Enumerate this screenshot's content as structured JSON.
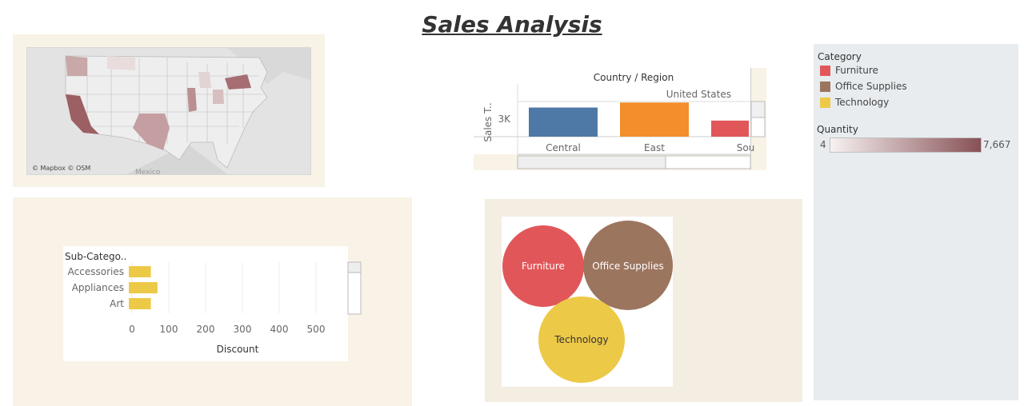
{
  "title": "Sales Analysis",
  "map": {
    "attribution": "© Mapbox © OSM",
    "country_label": "Mexico"
  },
  "region_chart": {
    "header": "Country / Region",
    "country": "United States",
    "y_label": "Sales T..",
    "y_tick": "3K",
    "colors": {
      "Central": "#4e79a7",
      "East": "#f28e2b",
      "South": "#e15759"
    }
  },
  "subcategory_chart": {
    "header": "Sub-Catego..",
    "x_title": "Discount",
    "bar_color": "#edc948"
  },
  "legend": {
    "category_title": "Category",
    "categories": [
      {
        "label": "Furniture",
        "color": "#e15759"
      },
      {
        "label": "Office Supplies",
        "color": "#9c755f"
      },
      {
        "label": "Technology",
        "color": "#edc948"
      }
    ],
    "quantity_title": "Quantity",
    "quantity_min": "4",
    "quantity_max": "7,667",
    "quantity_colors": [
      "#f7f1f1",
      "#875156"
    ]
  },
  "bubbles": [
    {
      "label": "Furniture",
      "color": "#e15759",
      "text_color": "#ffffff"
    },
    {
      "label": "Office Supplies",
      "color": "#9c755f",
      "text_color": "#ffffff"
    },
    {
      "label": "Technology",
      "color": "#edc948",
      "text_color": "#333333"
    }
  ],
  "chart_data": [
    {
      "type": "bar",
      "title": "Country / Region",
      "group": "United States",
      "categories": [
        "Central",
        "East",
        "Sou"
      ],
      "values": [
        2900,
        3400,
        1600
      ],
      "ylabel": "Sales T..",
      "yticks": [
        "3K"
      ],
      "ylim": [
        0,
        3500
      ]
    },
    {
      "type": "bar",
      "orientation": "horizontal",
      "ylabel": "Sub-Catego..",
      "categories": [
        "Accessories",
        "Appliances",
        "Art"
      ],
      "values": [
        60,
        78,
        60
      ],
      "xlabel": "Discount",
      "xticks": [
        0,
        100,
        200,
        300,
        400,
        500
      ],
      "xlim": [
        0,
        600
      ]
    }
  ]
}
